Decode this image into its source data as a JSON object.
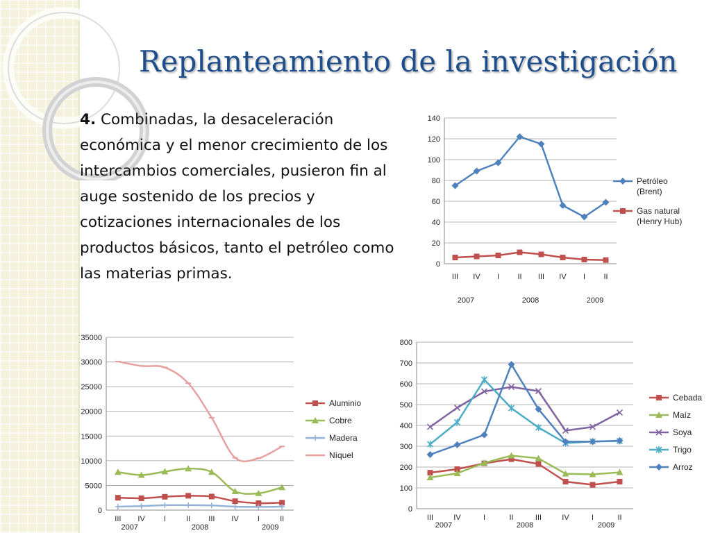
{
  "slide": {
    "title": "Replanteamiento de la investigación",
    "point_number": "4.",
    "point_text": "Combinadas, la desaceleración económica y el menor crecimiento de los intercambios comerciales, pusieron fin al auge sostenido de los precios y cotizaciones internacionales de los productos básicos, tanto el petróleo como las materias primas."
  },
  "chart_data": [
    {
      "type": "line",
      "categories": [
        "III",
        "IV",
        "I",
        "II",
        "III",
        "IV",
        "I",
        "II"
      ],
      "year_labels": [
        "2007",
        "2008",
        "2009"
      ],
      "ylim": [
        0,
        140
      ],
      "yticks": [
        0,
        20,
        40,
        60,
        80,
        100,
        120,
        140
      ],
      "grid": true,
      "legend": "right",
      "series": [
        {
          "name": "Petróleo (Brent)",
          "name_lines": [
            "Petróleo",
            "(Brent)"
          ],
          "color": "#4f81bd",
          "marker": "diamond",
          "values": [
            75,
            89,
            97,
            122,
            115,
            56,
            45,
            59
          ]
        },
        {
          "name": "Gas natural (Henry Hub)",
          "name_lines": [
            "Gas natural",
            "(Henry Hub)"
          ],
          "color": "#c0504d",
          "marker": "square",
          "values": [
            6,
            7,
            8,
            11,
            9,
            6,
            4,
            3.5
          ]
        }
      ]
    },
    {
      "type": "line",
      "categories": [
        "III",
        "IV",
        "I",
        "II",
        "III",
        "IV",
        "I",
        "II"
      ],
      "year_labels": [
        "2007",
        "2008",
        "2009"
      ],
      "ylim": [
        0,
        35000
      ],
      "yticks": [
        0,
        5000,
        10000,
        15000,
        20000,
        25000,
        30000,
        35000
      ],
      "grid": true,
      "legend": "right",
      "series": [
        {
          "name": "Aluminio",
          "name_lines": [
            "Aluminio"
          ],
          "color": "#c0504d",
          "marker": "square",
          "values": [
            2500,
            2400,
            2700,
            2900,
            2750,
            1800,
            1400,
            1500
          ]
        },
        {
          "name": "Cobre",
          "name_lines": [
            "Cobre"
          ],
          "color": "#9bbb59",
          "marker": "triangle",
          "values": [
            7700,
            7100,
            7800,
            8400,
            7700,
            3800,
            3400,
            4600
          ]
        },
        {
          "name": "Madera",
          "name_lines": [
            "Madera"
          ],
          "color": "#95b3d7",
          "marker": "plus",
          "values": [
            700,
            800,
            1000,
            1000,
            950,
            700,
            650,
            700
          ]
        },
        {
          "name": "Níquel",
          "name_lines": [
            "Níquel"
          ],
          "color": "#e6a0a0",
          "marker": "dash",
          "values": [
            30100,
            29200,
            28900,
            25700,
            18700,
            10600,
            10500,
            12900
          ]
        }
      ]
    },
    {
      "type": "line",
      "categories": [
        "III",
        "IV",
        "I",
        "II",
        "III",
        "IV",
        "I",
        "II"
      ],
      "year_labels": [
        "2007",
        "2008",
        "2009"
      ],
      "ylim": [
        0,
        800
      ],
      "yticks": [
        0,
        100,
        200,
        300,
        400,
        500,
        600,
        700,
        800
      ],
      "grid": true,
      "legend": "right",
      "series": [
        {
          "name": "Cebada",
          "name_lines": [
            "Cebada"
          ],
          "color": "#c0504d",
          "marker": "square",
          "values": [
            173,
            190,
            218,
            238,
            215,
            130,
            115,
            130
          ]
        },
        {
          "name": "Maíz",
          "name_lines": [
            "Maíz"
          ],
          "color": "#9bbb59",
          "marker": "triangle",
          "values": [
            150,
            170,
            220,
            255,
            242,
            168,
            165,
            175
          ]
        },
        {
          "name": "Soya",
          "name_lines": [
            "Soya"
          ],
          "color": "#8064a2",
          "marker": "x",
          "values": [
            393,
            485,
            563,
            585,
            565,
            375,
            393,
            462
          ]
        },
        {
          "name": "Trigo",
          "name_lines": [
            "Trigo"
          ],
          "color": "#4bacc6",
          "marker": "star",
          "values": [
            310,
            415,
            620,
            483,
            390,
            315,
            323,
            325
          ]
        },
        {
          "name": "Arroz",
          "name_lines": [
            "Arroz"
          ],
          "color": "#4f81bd",
          "marker": "diamond",
          "values": [
            260,
            307,
            355,
            693,
            478,
            322,
            322,
            327
          ]
        }
      ]
    }
  ]
}
